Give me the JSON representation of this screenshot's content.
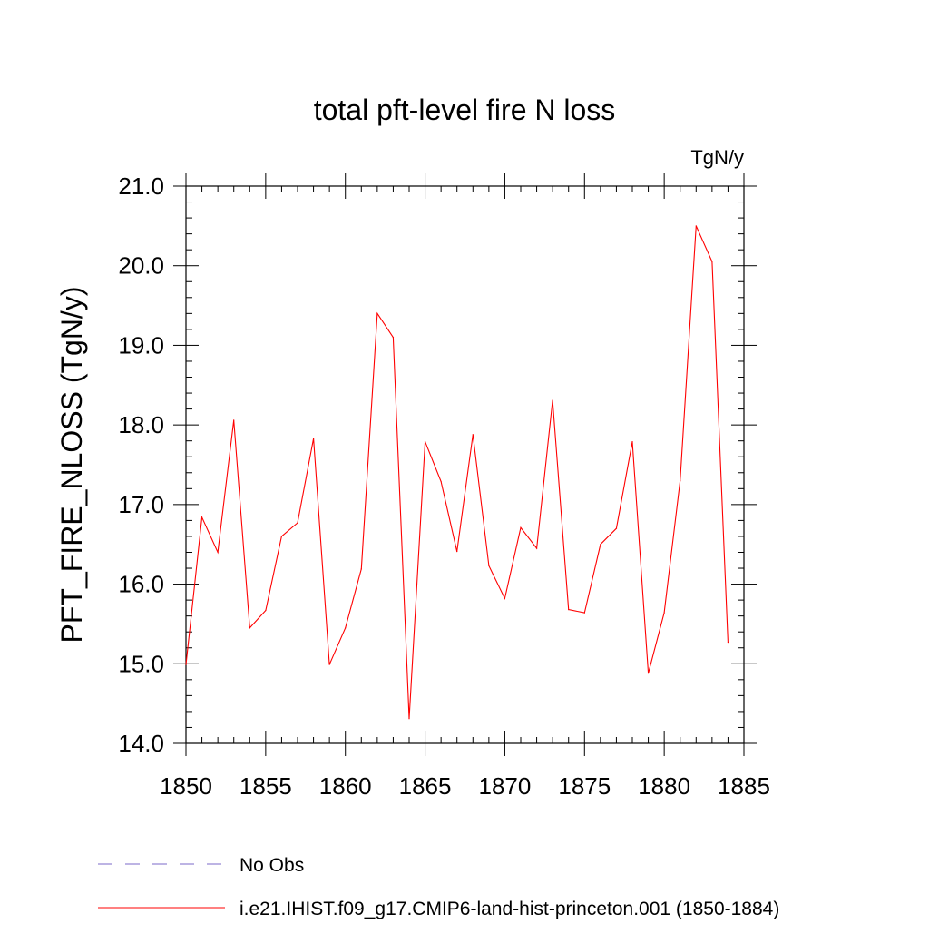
{
  "chart_data": {
    "type": "line",
    "title": "total pft-level fire N loss",
    "units_label": "TgN/y",
    "ylabel": "PFT_FIRE_NLOSS  (TgN/y)",
    "xlabel": "",
    "xlim": [
      1850,
      1885
    ],
    "ylim": [
      14.0,
      21.0
    ],
    "xticks": [
      "1850",
      "1855",
      "1860",
      "1865",
      "1870",
      "1875",
      "1880",
      "1885"
    ],
    "yticks": [
      "14.0",
      "15.0",
      "16.0",
      "17.0",
      "18.0",
      "19.0",
      "20.0",
      "21.0"
    ],
    "grid": false,
    "legend_position": "bottom-left",
    "x": [
      1850,
      1851,
      1852,
      1853,
      1854,
      1855,
      1856,
      1857,
      1858,
      1859,
      1860,
      1861,
      1862,
      1863,
      1864,
      1865,
      1866,
      1867,
      1868,
      1869,
      1870,
      1871,
      1872,
      1873,
      1874,
      1875,
      1876,
      1877,
      1878,
      1879,
      1880,
      1881,
      1882,
      1883,
      1884
    ],
    "series": [
      {
        "name": "i.e21.IHIST.f09_g17.CMIP6-land-hist-princeton.001 (1850-1884)",
        "color": "#ff0000",
        "style": "solid",
        "values": [
          14.99,
          16.84,
          16.4,
          18.06,
          15.45,
          15.67,
          16.6,
          16.77,
          17.83,
          14.99,
          15.45,
          16.19,
          19.4,
          19.1,
          14.31,
          17.79,
          17.29,
          16.41,
          17.88,
          16.23,
          15.82,
          16.71,
          16.45,
          18.31,
          15.68,
          15.64,
          16.5,
          16.7,
          17.79,
          14.88,
          15.64,
          17.3,
          20.5,
          20.05,
          15.27
        ]
      }
    ],
    "legend": [
      {
        "label": "No Obs",
        "color": "#7b68c8",
        "style": "dashed"
      },
      {
        "label": "i.e21.IHIST.f09_g17.CMIP6-land-hist-princeton.001 (1850-1884)",
        "color": "#ff0000",
        "style": "solid"
      }
    ]
  }
}
